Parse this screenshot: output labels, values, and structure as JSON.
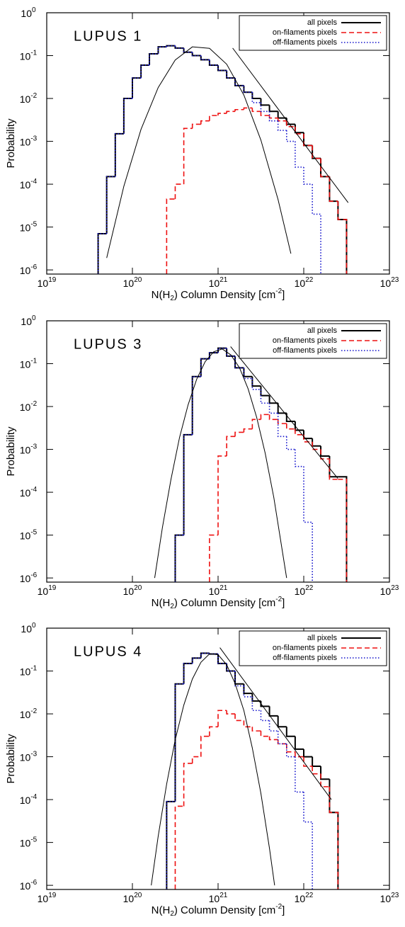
{
  "chart_data": [
    {
      "type": "histogram",
      "title": "LUPUS 1",
      "xlabel": [
        "N(H",
        "2",
        ") Column Density [cm",
        "-2",
        "]"
      ],
      "ylabel": "Probability",
      "xscale": "log",
      "yscale": "log",
      "xlim": [
        1e+19,
        1e+23
      ],
      "ylim": [
        8e-07,
        1
      ],
      "legend": "upper right",
      "xticks": [
        {
          "value": 1e+19,
          "label": "10",
          "exponent": "19"
        },
        {
          "value": 1e+20,
          "label": "10",
          "exponent": "20"
        },
        {
          "value": 1e+21,
          "label": "10",
          "exponent": "21"
        },
        {
          "value": 1e+22,
          "label": "10",
          "exponent": "22"
        },
        {
          "value": 1e+23,
          "label": "10",
          "exponent": "23"
        }
      ],
      "yticks": [
        {
          "value": 1,
          "label": "10",
          "exponent": "0"
        },
        {
          "value": 0.1,
          "label": "10",
          "exponent": "-1"
        },
        {
          "value": 0.01,
          "label": "10",
          "exponent": "-2"
        },
        {
          "value": 0.001,
          "label": "10",
          "exponent": "-3"
        },
        {
          "value": 0.0001,
          "label": "10",
          "exponent": "-4"
        },
        {
          "value": 1e-05,
          "label": "10",
          "exponent": "-5"
        },
        {
          "value": 1e-06,
          "label": "10",
          "exponent": "-6"
        }
      ],
      "bins": [
        3.98e+19,
        5.01e+19,
        6.31e+19,
        7.94e+19,
        1e+20,
        1.26e+20,
        1.58e+20,
        2e+20,
        2.51e+20,
        3.16e+20,
        3.98e+20,
        5.01e+20,
        6.31e+20,
        7.94e+20,
        1e+21,
        1.26e+21,
        1.58e+21,
        2e+21,
        2.51e+21,
        3.16e+21,
        3.98e+21,
        5.01e+21,
        6.31e+21,
        7.94e+21,
        1e+22,
        1.26e+22,
        1.58e+22,
        2e+22,
        2.51e+22,
        3.16e+22,
        3.98e+22
      ],
      "series": [
        {
          "name": "all pixels",
          "color": "#000000",
          "dash": "solid",
          "values": [
            7e-06,
            0.00015,
            0.0015,
            0.01,
            0.03,
            0.06,
            0.11,
            0.16,
            0.17,
            0.15,
            0.12,
            0.1,
            0.08,
            0.06,
            0.045,
            0.03,
            0.02,
            0.014,
            0.01,
            0.007,
            0.005,
            0.0035,
            0.0025,
            0.0016,
            0.0008,
            0.0004,
            0.00015,
            4e-05,
            1.5e-05,
            null
          ]
        },
        {
          "name": "on-filaments pixels",
          "color": "#ee1111",
          "dash": "dashed",
          "values": [
            null,
            null,
            null,
            null,
            null,
            null,
            null,
            null,
            4.5e-05,
            0.0001,
            0.002,
            0.0025,
            0.003,
            0.004,
            0.0045,
            0.005,
            0.0055,
            0.006,
            0.005,
            0.004,
            0.0035,
            0.003,
            0.0022,
            0.0015,
            0.0008,
            0.0004,
            0.00015,
            4e-05,
            1.5e-05,
            null
          ]
        },
        {
          "name": "off-filaments pixels",
          "color": "#1111cc",
          "dash": "dotted",
          "values": [
            7e-06,
            0.00015,
            0.0015,
            0.01,
            0.03,
            0.06,
            0.11,
            0.16,
            0.17,
            0.15,
            0.12,
            0.1,
            0.08,
            0.06,
            0.045,
            0.03,
            0.02,
            0.014,
            0.008,
            0.005,
            0.003,
            0.0018,
            0.001,
            0.00025,
            0.0001,
            2e-05,
            null,
            null,
            null,
            null
          ]
        }
      ],
      "curves": [
        {
          "color": "#000000",
          "x": [
            5.01e+19,
            7.94e+19,
            1.26e+20,
            2e+20,
            3.16e+20,
            5.01e+20,
            7.94e+20,
            1.26e+21,
            2e+21,
            3.16e+21,
            5.01e+21,
            7.08e+21
          ],
          "values": [
            1.9e-06,
            8.9e-05,
            0.0019,
            0.018,
            0.079,
            0.16,
            0.148,
            0.063,
            0.012,
            0.00107,
            4.4e-05,
            2.4e-06
          ]
        },
        {
          "color": "#000000",
          "x": [
            1.48e+21,
            3.3e+22
          ],
          "values": [
            0.15,
            3.7e-05
          ]
        }
      ]
    },
    {
      "type": "histogram",
      "title": "LUPUS 3",
      "xlabel": [
        "N(H",
        "2",
        ") Column Density [cm",
        "-2",
        "]"
      ],
      "ylabel": "Probability",
      "xscale": "log",
      "yscale": "log",
      "xlim": [
        1e+19,
        1e+23
      ],
      "ylim": [
        8e-07,
        1
      ],
      "legend": "upper right",
      "xticks": [
        {
          "value": 1e+19,
          "label": "10",
          "exponent": "19"
        },
        {
          "value": 1e+20,
          "label": "10",
          "exponent": "20"
        },
        {
          "value": 1e+21,
          "label": "10",
          "exponent": "21"
        },
        {
          "value": 1e+22,
          "label": "10",
          "exponent": "22"
        },
        {
          "value": 1e+23,
          "label": "10",
          "exponent": "23"
        }
      ],
      "yticks": [
        {
          "value": 1,
          "label": "10",
          "exponent": "0"
        },
        {
          "value": 0.1,
          "label": "10",
          "exponent": "-1"
        },
        {
          "value": 0.01,
          "label": "10",
          "exponent": "-2"
        },
        {
          "value": 0.001,
          "label": "10",
          "exponent": "-3"
        },
        {
          "value": 0.0001,
          "label": "10",
          "exponent": "-4"
        },
        {
          "value": 1e-05,
          "label": "10",
          "exponent": "-5"
        },
        {
          "value": 1e-06,
          "label": "10",
          "exponent": "-6"
        }
      ],
      "bins": [
        3.98e+19,
        5.01e+19,
        6.31e+19,
        7.94e+19,
        1e+20,
        1.26e+20,
        1.58e+20,
        2e+20,
        2.51e+20,
        3.16e+20,
        3.98e+20,
        5.01e+20,
        6.31e+20,
        7.94e+20,
        1e+21,
        1.26e+21,
        1.58e+21,
        2e+21,
        2.51e+21,
        3.16e+21,
        3.98e+21,
        5.01e+21,
        6.31e+21,
        7.94e+21,
        1e+22,
        1.26e+22,
        1.58e+22,
        2e+22,
        2.51e+22,
        3.16e+22,
        3.98e+22
      ],
      "series": [
        {
          "name": "all pixels",
          "color": "#000000",
          "dash": "solid",
          "values": [
            null,
            null,
            null,
            null,
            null,
            null,
            null,
            null,
            null,
            1e-05,
            0.0022,
            0.05,
            0.13,
            0.18,
            0.23,
            0.15,
            0.08,
            0.05,
            0.03,
            0.018,
            0.012,
            0.007,
            0.0045,
            0.0028,
            0.0018,
            0.0012,
            0.0007,
            0.00023,
            0.00023,
            null
          ]
        },
        {
          "name": "on-filaments pixels",
          "color": "#ee1111",
          "dash": "dashed",
          "values": [
            null,
            null,
            null,
            null,
            null,
            null,
            null,
            null,
            null,
            null,
            null,
            null,
            null,
            1e-05,
            0.0007,
            0.002,
            0.0025,
            0.003,
            0.005,
            0.0065,
            0.005,
            0.004,
            0.003,
            0.0022,
            0.0015,
            0.001,
            0.0006,
            0.0002,
            0.0002,
            null
          ]
        },
        {
          "name": "off-filaments pixels",
          "color": "#1111cc",
          "dash": "dotted",
          "values": [
            null,
            null,
            null,
            null,
            null,
            null,
            null,
            null,
            null,
            1e-05,
            0.0022,
            0.05,
            0.13,
            0.18,
            0.23,
            0.15,
            0.08,
            0.045,
            0.025,
            0.012,
            0.007,
            0.002,
            0.001,
            0.0004,
            2e-05,
            null,
            null,
            null,
            null,
            null
          ]
        }
      ],
      "curves": [
        {
          "color": "#000000",
          "x": [
            1.82e+20,
            2.24e+20,
            2.82e+20,
            3.55e+20,
            4.47e+20,
            5.62e+20,
            7.08e+20,
            8.91e+20,
            1.12e+21,
            1.41e+21,
            1.78e+21,
            2.24e+21,
            2.82e+21,
            3.55e+21,
            4.47e+21,
            6.31e+21
          ],
          "values": [
            1e-06,
            1.5e-05,
            0.0002,
            0.0019,
            0.011,
            0.043,
            0.112,
            0.19,
            0.22,
            0.16,
            0.08,
            0.026,
            0.0056,
            0.00081,
            7.6e-05,
            1e-06
          ]
        },
        {
          "color": "#000000",
          "x": [
            1.4e+21,
            2.5e+22
          ],
          "values": [
            0.25,
            0.00021
          ]
        }
      ]
    },
    {
      "type": "histogram",
      "title": "LUPUS 4",
      "xlabel": [
        "N(H",
        "2",
        ") Column Density [cm",
        "-2",
        "]"
      ],
      "ylabel": "Probability",
      "xscale": "log",
      "yscale": "log",
      "xlim": [
        1e+19,
        1e+23
      ],
      "ylim": [
        8e-07,
        1
      ],
      "legend": "upper right",
      "xticks": [
        {
          "value": 1e+19,
          "label": "10",
          "exponent": "19"
        },
        {
          "value": 1e+20,
          "label": "10",
          "exponent": "20"
        },
        {
          "value": 1e+21,
          "label": "10",
          "exponent": "21"
        },
        {
          "value": 1e+22,
          "label": "10",
          "exponent": "22"
        },
        {
          "value": 1e+23,
          "label": "10",
          "exponent": "23"
        }
      ],
      "yticks": [
        {
          "value": 1,
          "label": "10",
          "exponent": "0"
        },
        {
          "value": 0.1,
          "label": "10",
          "exponent": "-1"
        },
        {
          "value": 0.01,
          "label": "10",
          "exponent": "-2"
        },
        {
          "value": 0.001,
          "label": "10",
          "exponent": "-3"
        },
        {
          "value": 0.0001,
          "label": "10",
          "exponent": "-4"
        },
        {
          "value": 1e-05,
          "label": "10",
          "exponent": "-5"
        },
        {
          "value": 1e-06,
          "label": "10",
          "exponent": "-6"
        }
      ],
      "bins": [
        3.98e+19,
        5.01e+19,
        6.31e+19,
        7.94e+19,
        1e+20,
        1.26e+20,
        1.58e+20,
        2e+20,
        2.51e+20,
        3.16e+20,
        3.98e+20,
        5.01e+20,
        6.31e+20,
        7.94e+20,
        1e+21,
        1.26e+21,
        1.58e+21,
        2e+21,
        2.51e+21,
        3.16e+21,
        3.98e+21,
        5.01e+21,
        6.31e+21,
        7.94e+21,
        1e+22,
        1.26e+22,
        1.58e+22,
        2e+22,
        2.51e+22,
        3.16e+22,
        3.98e+22
      ],
      "series": [
        {
          "name": "all pixels",
          "color": "#000000",
          "dash": "solid",
          "values": [
            null,
            null,
            null,
            null,
            null,
            null,
            null,
            null,
            9e-05,
            0.05,
            0.15,
            0.2,
            0.26,
            0.25,
            0.15,
            0.1,
            0.05,
            0.03,
            0.02,
            0.015,
            0.009,
            0.005,
            0.003,
            0.0015,
            0.001,
            0.0006,
            0.0003,
            5e-05,
            null,
            null
          ]
        },
        {
          "name": "on-filaments pixels",
          "color": "#ee1111",
          "dash": "dashed",
          "values": [
            null,
            null,
            null,
            null,
            null,
            null,
            null,
            null,
            null,
            7e-05,
            0.0007,
            0.001,
            0.003,
            0.005,
            0.012,
            0.01,
            0.007,
            0.005,
            0.004,
            0.003,
            0.0025,
            0.002,
            0.0013,
            0.001,
            0.0006,
            0.0004,
            0.0002,
            5e-05,
            null,
            null
          ]
        },
        {
          "name": "off-filaments pixels",
          "color": "#1111cc",
          "dash": "dotted",
          "values": [
            null,
            null,
            null,
            null,
            null,
            null,
            null,
            null,
            9e-05,
            0.05,
            0.15,
            0.2,
            0.26,
            0.25,
            0.15,
            0.1,
            0.045,
            0.025,
            0.012,
            0.007,
            0.004,
            0.002,
            0.001,
            0.00015,
            3e-05,
            null,
            null,
            null,
            null,
            null
          ]
        }
      ],
      "curves": [
        {
          "color": "#000000",
          "x": [
            1.66e+20,
            2e+20,
            2.51e+20,
            3.16e+20,
            3.98e+20,
            5.01e+20,
            6.31e+20,
            7.94e+20,
            1e+21,
            1.26e+21,
            1.58e+21,
            2e+21,
            2.51e+21,
            3.16e+21,
            3.98e+21,
            4.57e+21
          ],
          "values": [
            1e-06,
            1.4e-05,
            0.00023,
            0.0025,
            0.016,
            0.065,
            0.16,
            0.25,
            0.24,
            0.14,
            0.051,
            0.012,
            0.0016,
            0.00014,
            7.3e-06,
            1e-06
          ]
        },
        {
          "color": "#000000",
          "x": [
            1.05e+21,
            2.1e+22
          ],
          "values": [
            0.35,
            0.0001
          ]
        }
      ]
    }
  ]
}
